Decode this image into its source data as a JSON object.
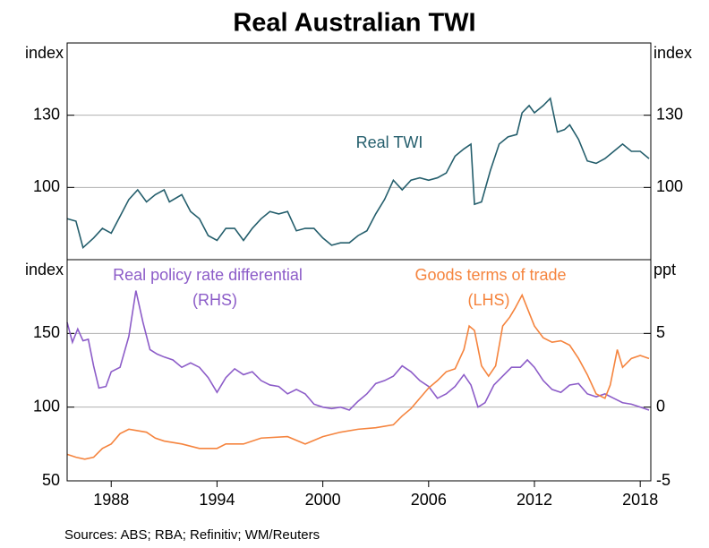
{
  "title": "Real Australian TWI",
  "source": "Sources:   ABS; RBA; Refinitiv; WM/Reuters",
  "chart_data": [
    {
      "type": "line",
      "ylabel": "index",
      "y2label": "index",
      "xlim": [
        1985.5,
        2018.6
      ],
      "ylim": [
        70,
        160
      ],
      "yticks": [
        100,
        130
      ],
      "y2lim": [
        70,
        160
      ],
      "y2ticks": [
        100,
        130
      ],
      "grid": true,
      "series": [
        {
          "name": "Real TWI",
          "color": "#245e6c",
          "x": [
            1985.5,
            1986,
            1986.4,
            1987,
            1987.5,
            1988,
            1988.5,
            1989,
            1989.5,
            1990,
            1990.5,
            1991,
            1991.3,
            1992,
            1992.5,
            1993,
            1993.5,
            1994,
            1994.5,
            1995,
            1995.5,
            1996,
            1996.5,
            1997,
            1997.5,
            1998,
            1998.5,
            1999,
            1999.5,
            2000,
            2000.5,
            2001,
            2001.5,
            2002,
            2002.5,
            2003,
            2003.5,
            2004,
            2004.5,
            2005,
            2005.5,
            2006,
            2006.5,
            2007,
            2007.5,
            2008,
            2008.4,
            2008.6,
            2009,
            2009.5,
            2010,
            2010.5,
            2011,
            2011.3,
            2011.7,
            2012,
            2012.5,
            2012.9,
            2013.3,
            2013.7,
            2014,
            2014.5,
            2015,
            2015.5,
            2016,
            2016.5,
            2017,
            2017.5,
            2018,
            2018.5
          ],
          "values": [
            87,
            86,
            75,
            79,
            83,
            81,
            88,
            95,
            99,
            94,
            97,
            99,
            94,
            97,
            90,
            87,
            80,
            78,
            83,
            83,
            78,
            83,
            87,
            90,
            89,
            90,
            82,
            83,
            83,
            79,
            76,
            77,
            77,
            80,
            82,
            89,
            95,
            103,
            99,
            103,
            104,
            103,
            104,
            106,
            113,
            116,
            118,
            93,
            94,
            107,
            118,
            121,
            122,
            131,
            134,
            131,
            134,
            137,
            123,
            124,
            126,
            120,
            111,
            110,
            112,
            115,
            118,
            115,
            115,
            112
          ]
        }
      ]
    },
    {
      "type": "line",
      "ylabel": "index",
      "y2label": "ppt",
      "xlim": [
        1985.5,
        2018.6
      ],
      "ylim": [
        50,
        200
      ],
      "yticks": [
        50,
        100,
        150
      ],
      "y2lim": [
        -5,
        10
      ],
      "y2ticks": [
        -5,
        0,
        5
      ],
      "grid": true,
      "xticks": [
        1988,
        1994,
        2000,
        2006,
        2012,
        2018
      ],
      "series": [
        {
          "name": "Real policy rate differential",
          "annotation": "(RHS)",
          "color": "#8c5cc8",
          "axis": "y2",
          "x": [
            1985.5,
            1985.8,
            1986.1,
            1986.4,
            1986.7,
            1987,
            1987.3,
            1987.7,
            1988,
            1988.5,
            1989,
            1989.4,
            1989.8,
            1990.2,
            1990.6,
            1991,
            1991.5,
            1992,
            1992.5,
            1993,
            1993.5,
            1994,
            1994.5,
            1995,
            1995.5,
            1996,
            1996.5,
            1997,
            1997.5,
            1998,
            1998.5,
            1999,
            1999.5,
            2000,
            2000.5,
            2001,
            2001.5,
            2002,
            2002.5,
            2003,
            2003.5,
            2004,
            2004.5,
            2005,
            2005.5,
            2006,
            2006.5,
            2007,
            2007.5,
            2008,
            2008.4,
            2008.8,
            2009.2,
            2009.7,
            2010.2,
            2010.7,
            2011.2,
            2011.6,
            2012,
            2012.5,
            2013,
            2013.5,
            2014,
            2014.5,
            2015,
            2015.5,
            2016,
            2016.5,
            2017,
            2017.5,
            2018,
            2018.5
          ],
          "values": [
            5.75,
            4.4,
            5.3,
            4.5,
            4.6,
            2.8,
            1.3,
            1.4,
            2.4,
            2.7,
            4.8,
            7.9,
            5.75,
            3.9,
            3.6,
            3.4,
            3.2,
            2.7,
            3.0,
            2.7,
            2.0,
            1.0,
            2.0,
            2.6,
            2.2,
            2.4,
            1.8,
            1.5,
            1.4,
            0.9,
            1.2,
            0.9,
            0.2,
            0,
            -0.1,
            0,
            -0.2,
            0.4,
            0.9,
            1.6,
            1.8,
            2.1,
            2.8,
            2.4,
            1.8,
            1.4,
            0.6,
            0.9,
            1.4,
            2.2,
            1.5,
            0,
            0.3,
            1.5,
            2.1,
            2.7,
            2.7,
            3.2,
            2.7,
            1.8,
            1.2,
            1.0,
            1.5,
            1.6,
            0.9,
            0.7,
            0.9,
            0.6,
            0.3,
            0.2,
            0,
            -0.2
          ]
        },
        {
          "name": "Goods terms of trade",
          "annotation": "(LHS)",
          "color": "#f5843e",
          "x": [
            1985.5,
            1986,
            1986.5,
            1987,
            1987.5,
            1988,
            1988.5,
            1989,
            1990,
            1990.5,
            1991,
            1992,
            1993,
            1994,
            1994.5,
            1995.5,
            1996.5,
            1998,
            1999,
            2000,
            2001,
            2002,
            2003,
            2004,
            2004.5,
            2005,
            2005.5,
            2006,
            2006.5,
            2007,
            2007.5,
            2008,
            2008.3,
            2008.6,
            2009,
            2009.4,
            2009.8,
            2010.2,
            2010.6,
            2010.9,
            2011.3,
            2011.6,
            2012,
            2012.5,
            2013,
            2013.5,
            2014,
            2014.5,
            2015,
            2015.5,
            2016,
            2016.3,
            2016.7,
            2017,
            2017.5,
            2018,
            2018.5
          ],
          "values": [
            68,
            66,
            64.7,
            66,
            72,
            75,
            82,
            85,
            83,
            79,
            77,
            75,
            72,
            72,
            75,
            75,
            79,
            80,
            75,
            80,
            83,
            85,
            86,
            88,
            94,
            99,
            106,
            113,
            118,
            124,
            126,
            139,
            155,
            152,
            128,
            121,
            128,
            155,
            161,
            167,
            176,
            167,
            155,
            147,
            144,
            145,
            142,
            133,
            122,
            109,
            106,
            115,
            139,
            127,
            133,
            135,
            133
          ]
        }
      ]
    }
  ]
}
